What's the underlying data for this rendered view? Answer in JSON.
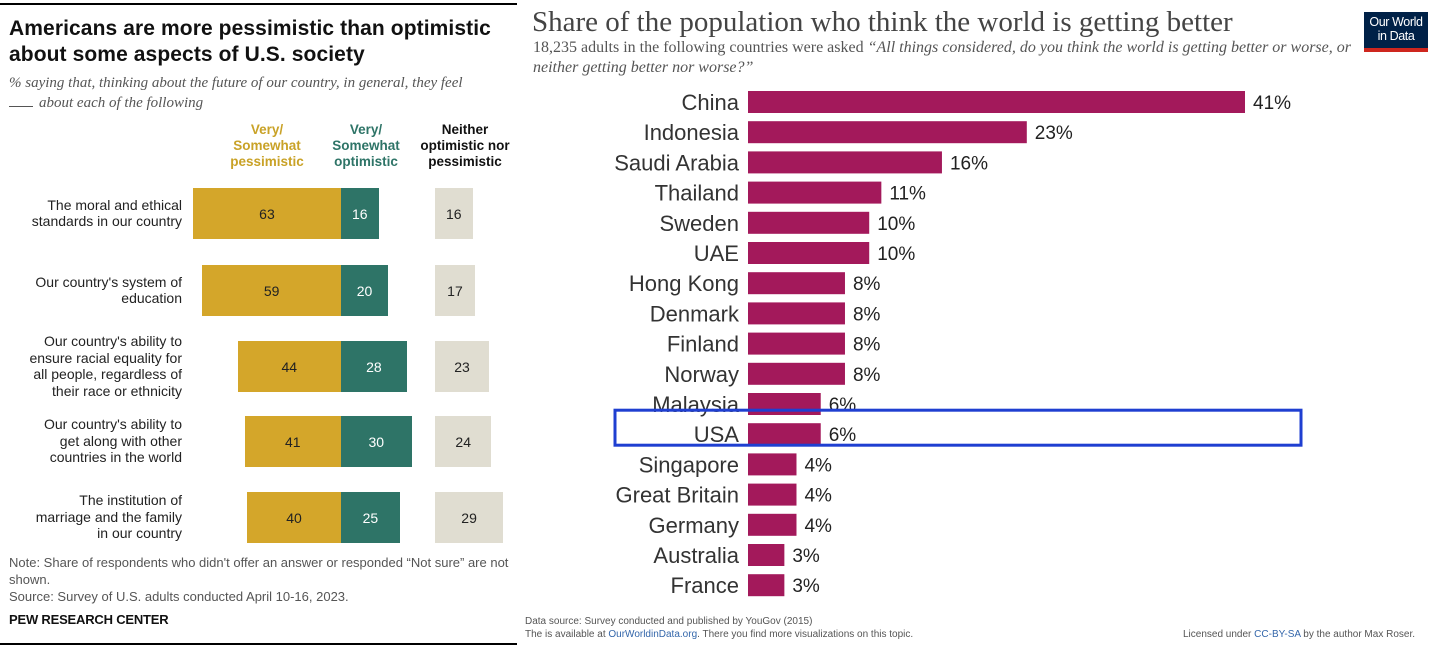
{
  "pew": {
    "title": "Americans are more pessimistic than optimistic about some aspects of U.S. society",
    "subtitle_part1": "% saying that, thinking about the future of our country, in general, they feel",
    "subtitle_part2": "about each of the following",
    "columns": [
      "Very/ Somewhat pessimistic",
      "Very/ Somewhat optimistic",
      "Neither optimistic nor pessimistic"
    ],
    "colors": {
      "pessimistic": "#d4a62a",
      "optimistic": "#2e7467",
      "neither": "#e0ddd1",
      "pess_label": "#c9a227",
      "opt_label": "#2e7467"
    },
    "rows": [
      {
        "label": "The moral and ethical standards in our country",
        "pessimistic": "63",
        "optimistic": "16",
        "neither": "16"
      },
      {
        "label": "Our country's system of education",
        "pessimistic": "59",
        "optimistic": "20",
        "neither": "17"
      },
      {
        "label": "Our country's ability to ensure racial equality for all people, regardless of their race or ethnicity",
        "pessimistic": "44",
        "optimistic": "28",
        "neither": "23"
      },
      {
        "label": "Our country's ability to get along with other countries in the world",
        "pessimistic": "41",
        "optimistic": "30",
        "neither": "24"
      },
      {
        "label": "The institution of marriage and the family in our country",
        "pessimistic": "40",
        "optimistic": "25",
        "neither": "29"
      }
    ],
    "note": "Note: Share of respondents who didn't offer an answer or responded “Not sure” are not shown.",
    "source": "Source: Survey of U.S. adults conducted April 10-16, 2023.",
    "brand": "PEW RESEARCH CENTER"
  },
  "owid": {
    "title": "Share of the population who think the world is getting better",
    "subtitle_plain": "18,235 adults in the following countries were asked ",
    "subtitle_quote": "“All things considered, do you think the world is getting better or worse, or neither getting better nor worse?”",
    "logo_line1": "Our World",
    "logo_line2": "in Data",
    "footer_line1": "Data source: Survey conducted and published by YouGov (2015)",
    "footer_line2_a": "The is available at ",
    "footer_line2_link": "OurWorldinData.org",
    "footer_line2_b": ". There you find more visualizations on this topic.",
    "license_a": "Licensed under ",
    "license_link": "CC-BY-SA",
    "license_b": " by the author Max Roser.",
    "highlight_country": "USA",
    "colors": {
      "bar": "#a3195b",
      "highlight": "#1f3fd1"
    }
  },
  "chart_data": {
    "type": "bar",
    "orientation": "horizontal",
    "title": "Share of the population who think the world is getting better",
    "categories": [
      "China",
      "Indonesia",
      "Saudi Arabia",
      "Thailand",
      "Sweden",
      "UAE",
      "Hong Kong",
      "Denmark",
      "Finland",
      "Norway",
      "Malaysia",
      "USA",
      "Singapore",
      "Great Britain",
      "Germany",
      "Australia",
      "France"
    ],
    "values": [
      41,
      23,
      16,
      11,
      10,
      10,
      8,
      8,
      8,
      8,
      6,
      6,
      4,
      4,
      4,
      3,
      3
    ],
    "value_labels": [
      "41%",
      "23%",
      "16%",
      "11%",
      "10%",
      "10%",
      "8%",
      "8%",
      "8%",
      "8%",
      "6%",
      "6%",
      "4%",
      "4%",
      "4%",
      "3%",
      "3%"
    ],
    "xlim": [
      0,
      41
    ]
  }
}
